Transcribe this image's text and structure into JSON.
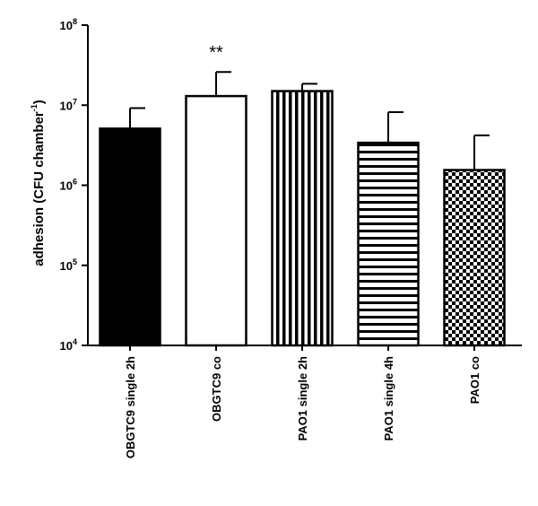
{
  "chart_data": {
    "type": "bar",
    "title": "",
    "xlabel": "",
    "ylabel": "adhesion (CFU chamber",
    "ylabel_sup": "-1",
    "ylabel_close": ")",
    "yscale": "log",
    "ylim": [
      10000,
      100000000
    ],
    "ytick_base": "10",
    "ytick_exponents": [
      "4",
      "5",
      "6",
      "7",
      "8"
    ],
    "categories": [
      "OBGTC9  single 2h",
      "OBGTC9 co",
      "PAO1  single 2h",
      "PAO1  single 4h",
      "PAO1  co"
    ],
    "values": [
      5100000,
      13000000,
      15000000,
      3400000,
      1550000
    ],
    "error_upper": [
      9200000,
      26000000,
      18500000,
      8200000,
      4200000
    ],
    "fills": [
      "solid-black",
      "white",
      "vertical-stripes",
      "horizontal-stripes",
      "checkerboard"
    ],
    "annotations": [
      {
        "category": "OBGTC9 co",
        "text": "**"
      }
    ],
    "grid": false,
    "legend": "none"
  }
}
